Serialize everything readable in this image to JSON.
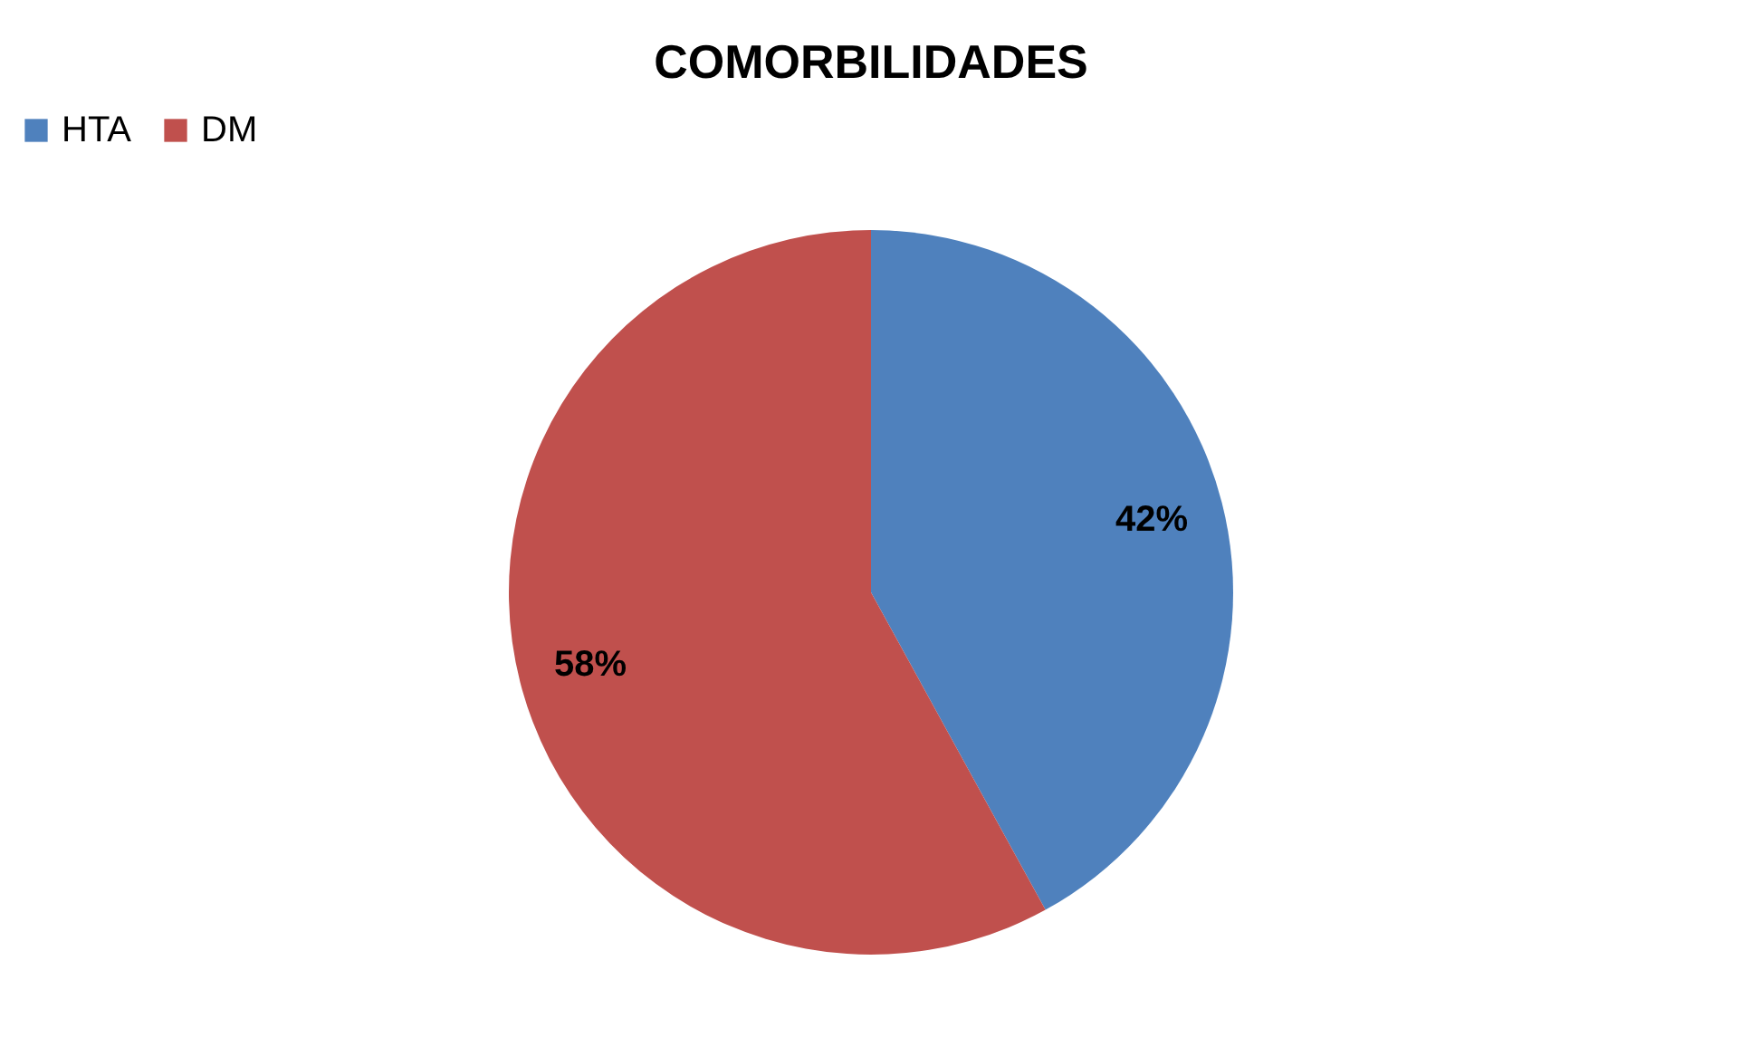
{
  "chart_data": {
    "type": "pie",
    "title": "COMORBILIDADES",
    "categories": [
      "HTA",
      "DM"
    ],
    "values": [
      42,
      58
    ],
    "colors": [
      "#4f81bd",
      "#c0504d"
    ],
    "value_labels": [
      "42%",
      "58%"
    ],
    "legend": "top"
  }
}
